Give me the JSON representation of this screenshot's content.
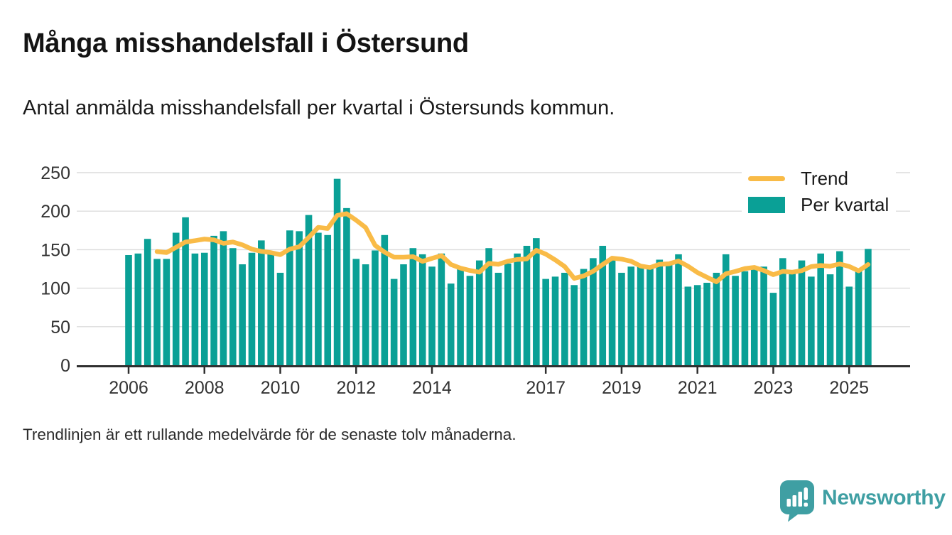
{
  "page": {
    "title": "Många misshandelsfall i Östersund",
    "subtitle": "Antal anmälda misshandelsfall per kvartal i Östersunds kommun.",
    "footnote": "Trendlinjen är ett rullande medelvärde för de senaste tolv månaderna."
  },
  "legend": {
    "trend_label": "Trend",
    "bars_label": "Per kvartal"
  },
  "logo": {
    "text": "Newsworthy"
  },
  "colors": {
    "bar": "#0aa096",
    "trend": "#f9bb47",
    "grid": "#dcdcdc",
    "axis": "#2f2f2f",
    "tick_text": "#333333",
    "logo": "#3f9fa3"
  },
  "chart_data": {
    "type": "bar",
    "title": "Antal anmälda misshandelsfall per kvartal i Östersunds kommun",
    "x_start": "2006-Q1",
    "x_end": "2025-Q3",
    "frequency": "quarterly",
    "values": [
      143,
      145,
      164,
      138,
      138,
      172,
      192,
      145,
      146,
      168,
      174,
      152,
      131,
      146,
      162,
      146,
      120,
      175,
      174,
      195,
      172,
      169,
      242,
      204,
      138,
      131,
      149,
      169,
      112,
      131,
      152,
      144,
      128,
      145,
      106,
      125,
      116,
      136,
      152,
      120,
      132,
      145,
      155,
      165,
      112,
      115,
      120,
      104,
      125,
      139,
      155,
      137,
      120,
      128,
      130,
      129,
      137,
      131,
      144,
      102,
      104,
      107,
      120,
      144,
      116,
      122,
      126,
      128,
      94,
      139,
      122,
      136,
      115,
      145,
      118,
      148,
      102,
      122,
      151
    ],
    "series": [
      {
        "name": "Per kvartal",
        "style": "bar"
      },
      {
        "name": "Trend",
        "style": "line",
        "derivation": "rolling 12-month (4-quarter) mean of the bar values"
      }
    ],
    "trend_window_quarters": 4,
    "y_ticks": [
      0,
      50,
      100,
      150,
      200,
      250
    ],
    "x_tick_years": [
      2006,
      2008,
      2010,
      2012,
      2014,
      2017,
      2019,
      2021,
      2023,
      2025
    ],
    "ylim": [
      0,
      250
    ],
    "grid": "horizontal",
    "legend_position": "top-right"
  }
}
